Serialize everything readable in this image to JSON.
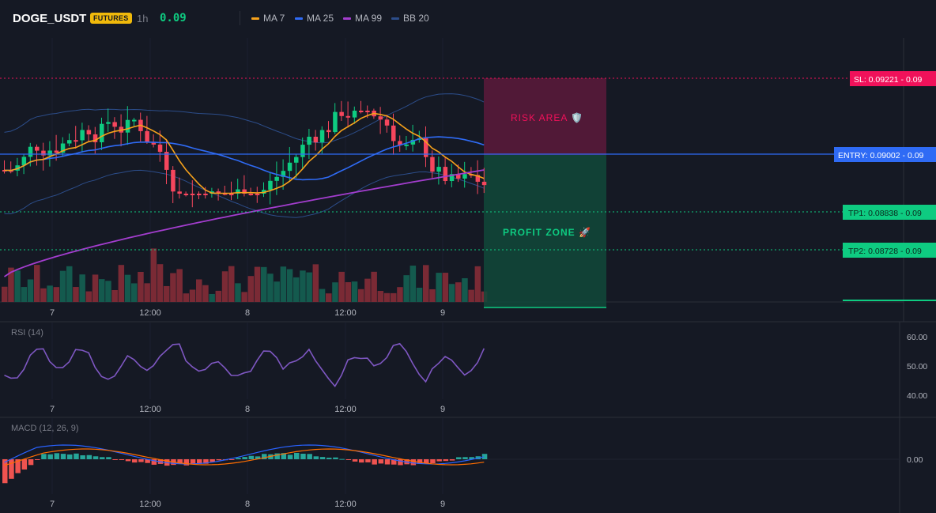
{
  "header": {
    "symbol": "DOGE_USDT",
    "badge": "FUTURES",
    "timeframe": "1h",
    "price": "0.09",
    "legend": [
      {
        "label": "MA 7",
        "color": "#f7a21b"
      },
      {
        "label": "MA 25",
        "color": "#2f6bf5"
      },
      {
        "label": "MA 99",
        "color": "#a33dce"
      },
      {
        "label": "BB 20",
        "color": "#2c4d8a"
      }
    ]
  },
  "colors": {
    "up": "#0ecb81",
    "down": "#f6465d",
    "background": "#151924",
    "grid": "#1e2230"
  },
  "levels": {
    "sl": {
      "label": "SL: 0.09221 - 0.09",
      "color": "#f0115a"
    },
    "entry": {
      "label": "ENTRY: 0.09002 - 0.09",
      "color": "#2f6bf5"
    },
    "tp1": {
      "label": "TP1: 0.08838 - 0.09",
      "color": "#0ecb81"
    },
    "tp2": {
      "label": "TP2: 0.08728 - 0.09",
      "color": "#0ecb81"
    }
  },
  "zones": {
    "risk": "RISK AREA 🛡️",
    "profit": "PROFIT ZONE 🚀"
  },
  "time_axis": [
    "7",
    "12:00",
    "8",
    "12:00",
    "9"
  ],
  "rsi": {
    "label": "RSI (14)",
    "ticks": [
      "60.00",
      "50.00",
      "40.00"
    ]
  },
  "macd": {
    "label": "MACD (12, 26, 9)",
    "tick": "0.00"
  }
}
